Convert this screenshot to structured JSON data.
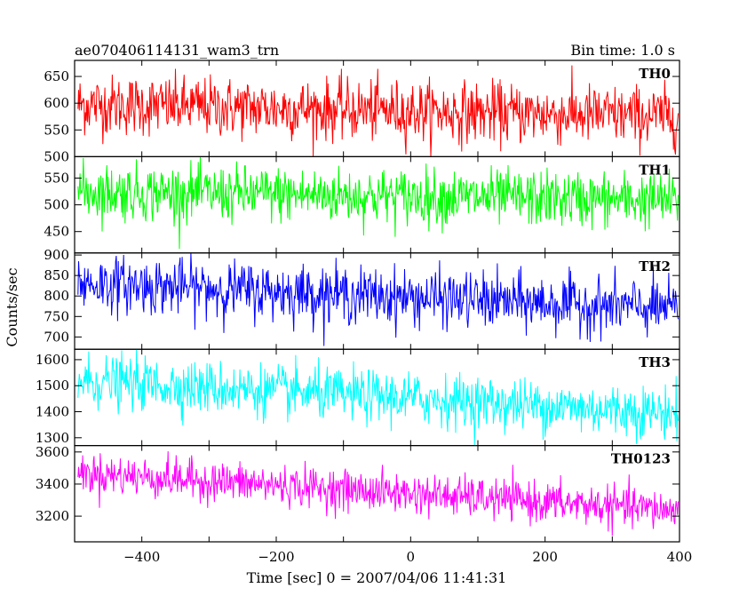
{
  "header": {
    "title": "ae070406114131_wam3_trn",
    "bin_time": "Bin time: 1.0 s"
  },
  "chart_data": {
    "type": "line",
    "xlabel": "Time [sec] 0 = 2007/04/06 11:41:31",
    "ylabel": "Counts/sec",
    "xlim": [
      -500,
      400
    ],
    "xticks": [
      -400,
      -200,
      0,
      200,
      400
    ],
    "series": [
      {
        "name": "TH0",
        "color": "#ff0000",
        "ylim": [
          500,
          680
        ],
        "yticks": [
          500,
          550,
          600,
          650
        ],
        "start_mean": 598,
        "end_mean": 575,
        "spread": 28
      },
      {
        "name": "TH1",
        "color": "#00ff00",
        "ylim": [
          410,
          590
        ],
        "yticks": [
          450,
          500,
          550
        ],
        "start_mean": 525,
        "end_mean": 508,
        "spread": 26
      },
      {
        "name": "TH2",
        "color": "#0000ff",
        "ylim": [
          670,
          905
        ],
        "yticks": [
          700,
          750,
          800,
          850,
          900
        ],
        "start_mean": 832,
        "end_mean": 768,
        "spread": 34
      },
      {
        "name": "TH3",
        "color": "#00ffff",
        "ylim": [
          1270,
          1640
        ],
        "yticks": [
          1300,
          1400,
          1500,
          1600
        ],
        "start_mean": 1520,
        "end_mean": 1395,
        "spread": 50
      },
      {
        "name": "TH0123",
        "color": "#ff00ff",
        "ylim": [
          3040,
          3640
        ],
        "yticks": [
          3200,
          3400,
          3600
        ],
        "start_mean": 3470,
        "end_mean": 3235,
        "spread": 62
      }
    ]
  }
}
